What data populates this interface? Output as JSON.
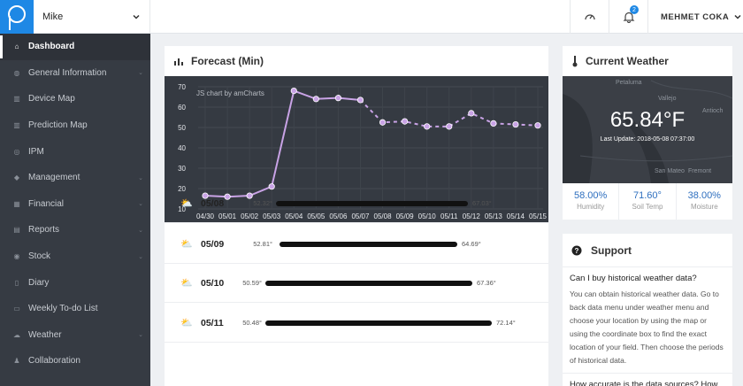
{
  "topbar": {
    "user_select": "Mike",
    "notification_count": "2",
    "account_name": "MEHMET COKA"
  },
  "sidebar": {
    "items": [
      {
        "label": "Dashboard",
        "icon": "home-icon",
        "active": true,
        "has_arrow": false
      },
      {
        "label": "General Information",
        "icon": "info-icon",
        "active": false,
        "has_arrow": true
      },
      {
        "label": "Device Map",
        "icon": "map-icon",
        "active": false,
        "has_arrow": false
      },
      {
        "label": "Prediction Map",
        "icon": "map-icon",
        "active": false,
        "has_arrow": false
      },
      {
        "label": "IPM",
        "icon": "globe-icon",
        "active": false,
        "has_arrow": false
      },
      {
        "label": "Management",
        "icon": "tag-icon",
        "active": false,
        "has_arrow": true
      },
      {
        "label": "Financial",
        "icon": "calculator-icon",
        "active": false,
        "has_arrow": true
      },
      {
        "label": "Reports",
        "icon": "chart-icon",
        "active": false,
        "has_arrow": true
      },
      {
        "label": "Stock",
        "icon": "database-icon",
        "active": false,
        "has_arrow": true
      },
      {
        "label": "Diary",
        "icon": "book-icon",
        "active": false,
        "has_arrow": false
      },
      {
        "label": "Weekly To-do List",
        "icon": "calendar-icon",
        "active": false,
        "has_arrow": false
      },
      {
        "label": "Weather",
        "icon": "cloud-icon",
        "active": false,
        "has_arrow": true
      },
      {
        "label": "Collaboration",
        "icon": "users-icon",
        "active": false,
        "has_arrow": false
      }
    ]
  },
  "forecast": {
    "title": "Forecast (Min)",
    "credit": "JS chart by amCharts",
    "rows": [
      {
        "date": "05/08",
        "min": "52.32°",
        "max": "67.03°"
      },
      {
        "date": "05/09",
        "min": "52.81°",
        "max": "64.69°"
      },
      {
        "date": "05/10",
        "min": "50.59°",
        "max": "67.36°"
      },
      {
        "date": "05/11",
        "min": "50.48°",
        "max": "72.14°"
      }
    ]
  },
  "chart_data": {
    "type": "line",
    "title": "",
    "xlabel": "",
    "ylabel": "",
    "categories": [
      "04/30",
      "05/01",
      "05/02",
      "05/03",
      "05/04",
      "05/05",
      "05/06",
      "05/07",
      "05/08",
      "05/09",
      "05/10",
      "05/11",
      "05/12",
      "05/13",
      "05/14",
      "05/15"
    ],
    "values": [
      16.5,
      16,
      16.5,
      21,
      68,
      64,
      64.5,
      63.5,
      52.5,
      53,
      50.5,
      50.5,
      57,
      52,
      51.5,
      51
    ],
    "dashed_from_index": 7,
    "ylim": [
      10,
      70
    ],
    "yticks": [
      10,
      20,
      30,
      40,
      50,
      60,
      70
    ],
    "grid": true,
    "line_color": "#c9a3e6",
    "background": "#353a42"
  },
  "weather": {
    "title": "Current Weather",
    "temperature": "65.84°F",
    "last_update": "Last Update: 2018-05-08 07:37:00",
    "map_labels": [
      "Petaluma",
      "Vallejo",
      "Antioch",
      "San Mateo",
      "Fremont"
    ],
    "stats": [
      {
        "value": "58.00%",
        "label": "Humidity"
      },
      {
        "value": "71.60°",
        "label": "Soil Temp"
      },
      {
        "value": "38.00%",
        "label": "Moisture"
      }
    ]
  },
  "support": {
    "title": "Support",
    "q1": "Can I buy historical weather data?",
    "a1": "You can obtain historical weather data. Go to back data menu under weather menu and choose your location by using the map or using the coordinate box to find the exact location of your field. Then choose the periods of historical data.",
    "q2": "How accurate is the data sources? How accurate is the data sources?"
  }
}
